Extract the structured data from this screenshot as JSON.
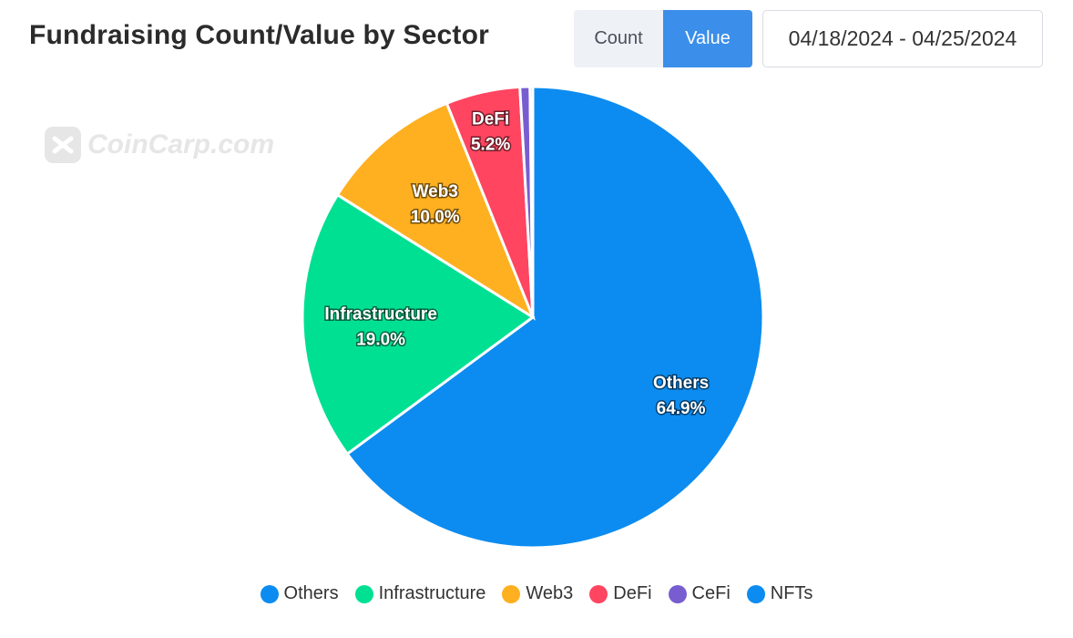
{
  "header": {
    "title": "Fundraising Count/Value by Sector",
    "toggle": {
      "count_label": "Count",
      "value_label": "Value",
      "active": "Value"
    },
    "date_range": "04/18/2024 - 04/25/2024"
  },
  "watermark": {
    "text": "CoinCarp.com",
    "icon": "coincarp-logo-icon"
  },
  "chart_data": {
    "type": "pie",
    "slices": [
      {
        "name": "Others",
        "value": 64.9,
        "color": "#0c8cf0",
        "label": "64.9%"
      },
      {
        "name": "Infrastructure",
        "value": 19.0,
        "color": "#00e093",
        "label": "19.0%"
      },
      {
        "name": "Web3",
        "value": 10.0,
        "color": "#feb020",
        "label": "10.0%"
      },
      {
        "name": "DeFi",
        "value": 5.2,
        "color": "#ff4560",
        "label": "5.2%"
      },
      {
        "name": "CeFi",
        "value": 0.7,
        "color": "#775dd0",
        "label": ""
      },
      {
        "name": "NFTs",
        "value": 0.2,
        "color": "#0c8cf0",
        "label": ""
      }
    ],
    "legend_position": "bottom"
  }
}
